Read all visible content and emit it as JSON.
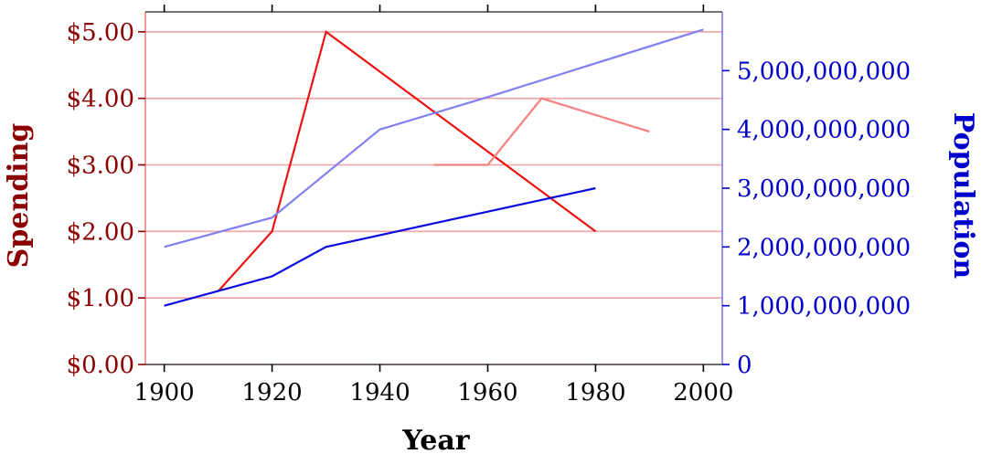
{
  "chart_data": {
    "type": "line",
    "xlabel": "Year",
    "ylabel_left": "Spending",
    "ylabel_right": "Population",
    "x_ticks": [
      "1900",
      "1920",
      "1940",
      "1960",
      "1980",
      "2000"
    ],
    "xlim": [
      1896.5,
      2003.5
    ],
    "y_left_ticks": [
      "$0.00",
      "$1.00",
      "$2.00",
      "$3.00",
      "$4.00",
      "$5.00"
    ],
    "y_left_lim": [
      0,
      5.3
    ],
    "y_right_ticks": [
      "0",
      "1,000,000,000",
      "2,000,000,000",
      "3,000,000,000",
      "4,000,000,000",
      "5,000,000,000"
    ],
    "y_right_lim": [
      0,
      6000000000
    ],
    "grid": "horizontal, left axis",
    "colors": {
      "left_axis": "#8b0000",
      "right_axis": "#0000cc",
      "grid": "#f4a3a3",
      "left_spine": "#f08080",
      "right_spine": "#7a7aff"
    },
    "series": [
      {
        "axis": "left",
        "color": "#ee1111",
        "x": [
          1910,
          1920,
          1930,
          1980
        ],
        "y": [
          1.1,
          2.0,
          5.0,
          2.0
        ]
      },
      {
        "axis": "left",
        "color": "#f48080",
        "x": [
          1950,
          1960,
          1970,
          1990
        ],
        "y": [
          3.0,
          3.0,
          4.0,
          3.5
        ]
      },
      {
        "axis": "right",
        "color": "#0a0ae0",
        "x": [
          1900,
          1910,
          1920,
          1930,
          1980
        ],
        "y": [
          1000000000,
          1250000000,
          1500000000,
          2000000000,
          3000000000
        ]
      },
      {
        "axis": "right",
        "color": "#8080f4",
        "x": [
          1900,
          1920,
          1940,
          1960,
          2000
        ],
        "y": [
          2000000000,
          2500000000,
          4000000000,
          4550000000,
          5700000000
        ]
      }
    ]
  }
}
